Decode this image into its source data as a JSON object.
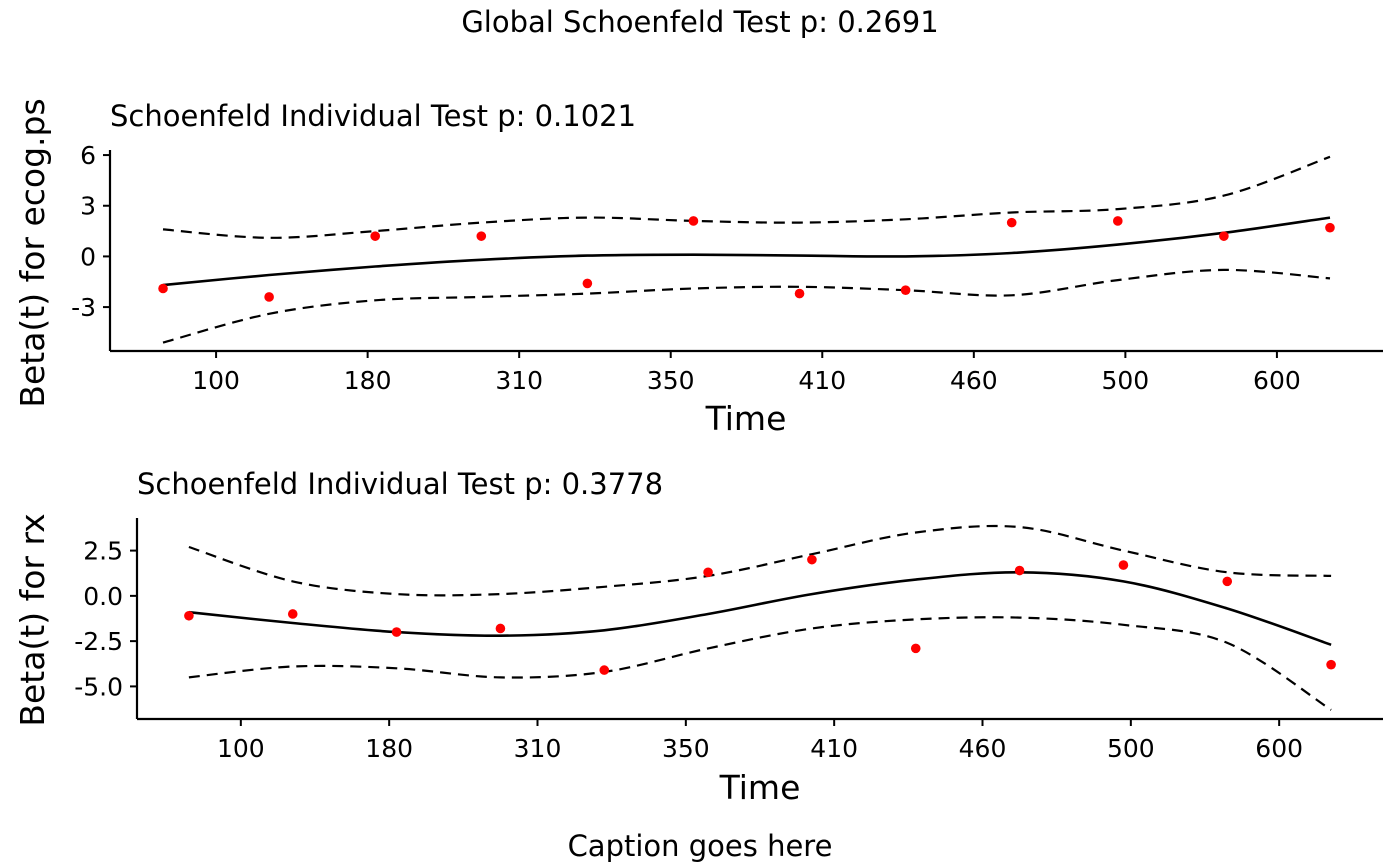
{
  "title": "Global Schoenfeld Test p: 0.2691",
  "caption": "Caption goes here",
  "chart_data": [
    {
      "type": "scatter",
      "subtitle": "Schoenfeld Individual Test p: 0.1021",
      "xlabel": "Time",
      "ylabel": "Beta(t) for ecog.ps",
      "x_ticks": [
        "100",
        "180",
        "310",
        "350",
        "410",
        "460",
        "500",
        "600"
      ],
      "y_ticks": [
        "6",
        "3",
        "0",
        "-3"
      ],
      "y_tick_values": [
        6,
        3,
        0,
        -3
      ],
      "ylim": [
        -5.6,
        6.3
      ],
      "x_index_range": [
        0.5,
        12.5
      ],
      "points": {
        "x_index": [
          1,
          2,
          3,
          4,
          5,
          6,
          7,
          8,
          9,
          10,
          11,
          12
        ],
        "y": [
          -1.9,
          -2.4,
          1.2,
          1.2,
          -1.6,
          2.1,
          -2.2,
          -2.0,
          2.0,
          2.1,
          1.2,
          1.7
        ],
        "color": "#ff0000"
      },
      "fit": {
        "x_index": [
          1,
          2,
          3,
          4,
          5,
          6,
          7,
          8,
          9,
          10,
          11,
          12
        ],
        "y": [
          -1.7,
          -1.1,
          -0.6,
          -0.2,
          0.05,
          0.1,
          0.05,
          0.0,
          0.2,
          0.7,
          1.4,
          2.3
        ],
        "upper": [
          1.6,
          1.1,
          1.5,
          2.0,
          2.3,
          2.1,
          2.0,
          2.2,
          2.6,
          2.8,
          3.6,
          5.9
        ],
        "lower": [
          -5.1,
          -3.4,
          -2.6,
          -2.4,
          -2.2,
          -1.9,
          -1.8,
          -2.0,
          -2.3,
          -1.4,
          -0.8,
          -1.3
        ]
      }
    },
    {
      "type": "scatter",
      "subtitle": "Schoenfeld Individual Test p: 0.3778",
      "xlabel": "Time",
      "ylabel": "Beta(t) for rx",
      "x_ticks": [
        "100",
        "180",
        "310",
        "350",
        "410",
        "460",
        "500",
        "600"
      ],
      "y_ticks": [
        "2.5",
        "0.0",
        "-2.5",
        "-5.0"
      ],
      "y_tick_values": [
        2.5,
        0.0,
        -2.5,
        -5.0
      ],
      "ylim": [
        -6.8,
        4.3
      ],
      "x_index_range": [
        0.5,
        12.5
      ],
      "points": {
        "x_index": [
          1,
          2,
          3,
          4,
          5,
          6,
          7,
          8,
          9,
          10,
          11,
          12
        ],
        "y": [
          -1.1,
          -1.0,
          -2.0,
          -1.8,
          -4.1,
          1.3,
          2.0,
          -2.9,
          1.4,
          1.7,
          0.8,
          -3.8
        ],
        "color": "#ff0000"
      },
      "fit": {
        "x_index": [
          1,
          2,
          3,
          4,
          5,
          6,
          7,
          8,
          9,
          10,
          11,
          12
        ],
        "y": [
          -0.9,
          -1.5,
          -2.0,
          -2.2,
          -1.9,
          -1.0,
          0.1,
          0.9,
          1.3,
          0.8,
          -0.7,
          -2.7
        ],
        "upper": [
          2.7,
          0.8,
          0.1,
          0.1,
          0.5,
          1.1,
          2.3,
          3.5,
          3.8,
          2.5,
          1.3,
          1.1
        ],
        "lower": [
          -4.5,
          -3.9,
          -4.0,
          -4.5,
          -4.2,
          -2.9,
          -1.8,
          -1.3,
          -1.2,
          -1.6,
          -2.6,
          -6.3
        ]
      }
    }
  ]
}
